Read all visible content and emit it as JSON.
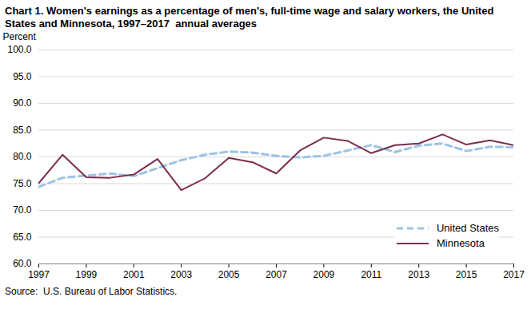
{
  "chart_data": {
    "type": "line",
    "title": "Chart 1. Women's earnings as a percentage of men's, full-time wage and salary workers, the United States and Minnesota, 1997–2017  annual averages",
    "y_label": "Percent",
    "source": "Source:  U.S. Bureau of Labor Statistics.",
    "x": [
      1997,
      1998,
      1999,
      2000,
      2001,
      2002,
      2003,
      2004,
      2005,
      2006,
      2007,
      2008,
      2009,
      2010,
      2011,
      2012,
      2013,
      2014,
      2015,
      2016,
      2017
    ],
    "xlim": [
      1997,
      2017
    ],
    "xticks": [
      1997,
      1999,
      2001,
      2003,
      2005,
      2007,
      2009,
      2011,
      2013,
      2015,
      2017
    ],
    "ylim": [
      60,
      100
    ],
    "yticks": [
      {
        "value": 60,
        "label": "60.0"
      },
      {
        "value": 65,
        "label": "65.0"
      },
      {
        "value": 70,
        "label": "70.0"
      },
      {
        "value": 75,
        "label": "75.0"
      },
      {
        "value": 80,
        "label": "80.0"
      },
      {
        "value": 85,
        "label": "85.0"
      },
      {
        "value": 90,
        "label": "90.0"
      },
      {
        "value": 95,
        "label": "95.0"
      },
      {
        "value": 100,
        "label": "100.0"
      }
    ],
    "grid": true,
    "legend": "lower right",
    "series": [
      {
        "name": "United States",
        "color": "#9dc3e6",
        "line_style": "dashed",
        "values": [
          74.4,
          76.1,
          76.5,
          76.9,
          76.4,
          77.9,
          79.4,
          80.4,
          81.0,
          80.8,
          80.2,
          79.9,
          80.2,
          81.2,
          82.2,
          80.9,
          82.1,
          82.5,
          81.1,
          81.9,
          81.8
        ]
      },
      {
        "name": "Minnesota",
        "color": "#7b2d4f",
        "line_style": "solid",
        "values": [
          75.1,
          80.4,
          76.2,
          76.1,
          76.7,
          79.6,
          73.8,
          76.0,
          79.8,
          79.0,
          76.9,
          81.2,
          83.6,
          83.0,
          80.7,
          82.2,
          82.5,
          84.2,
          82.3,
          83.1,
          82.2
        ]
      }
    ]
  }
}
